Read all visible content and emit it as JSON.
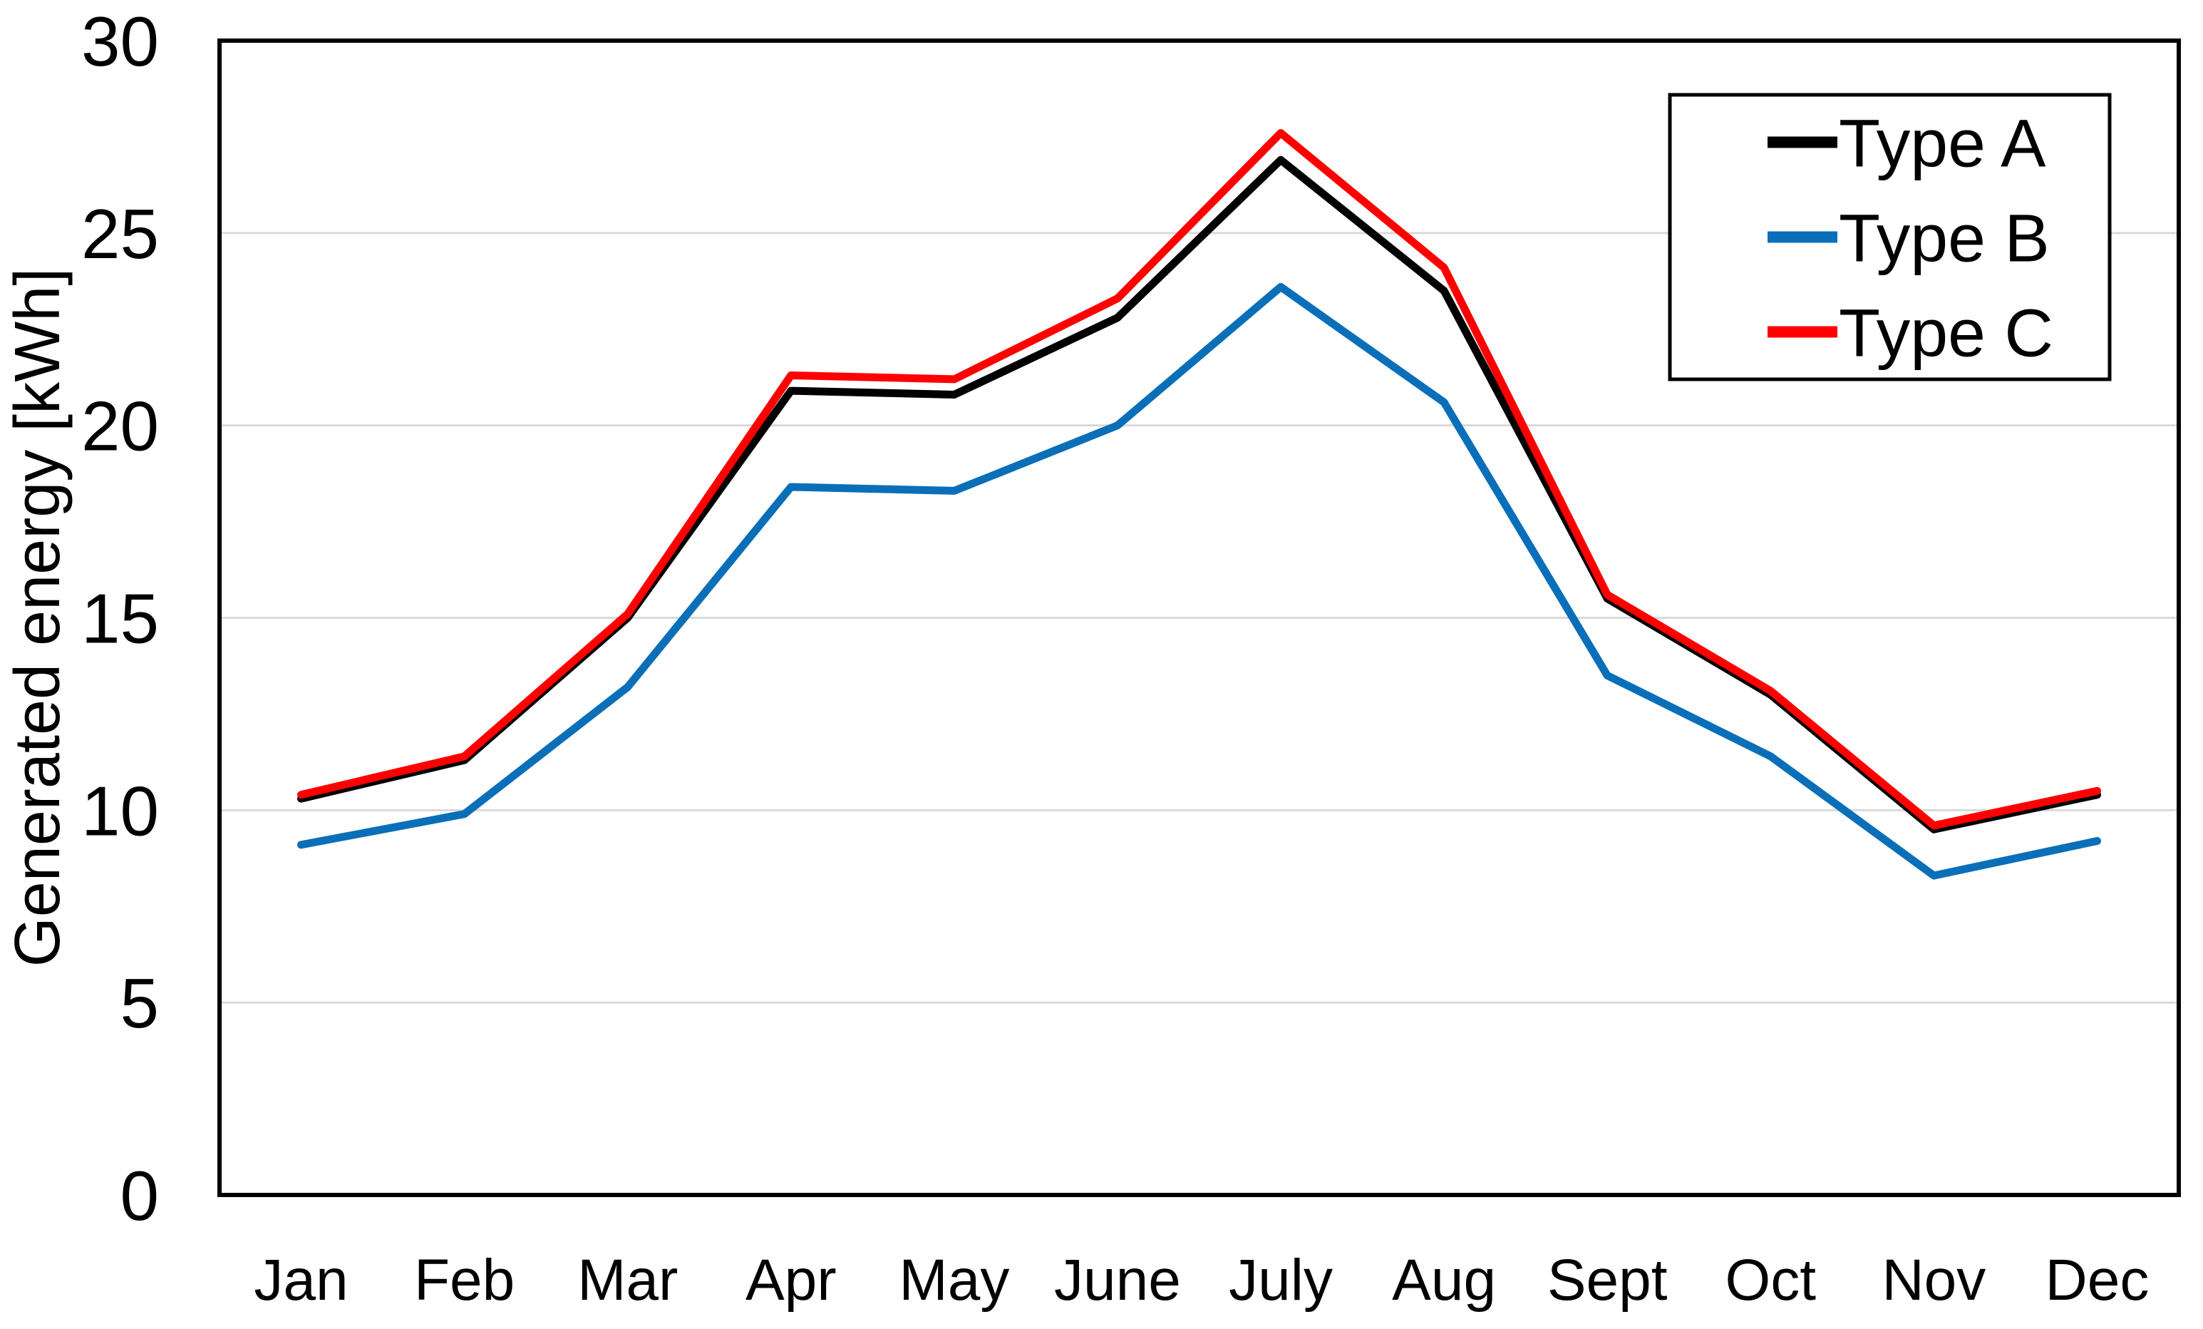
{
  "chart_data": {
    "type": "line",
    "title": "",
    "xlabel": "",
    "ylabel": "Generated energy [kWh]",
    "categories": [
      "Jan",
      "Feb",
      "Mar",
      "Apr",
      "May",
      "June",
      "July",
      "Aug",
      "Sept",
      "Oct",
      "Nov",
      "Dec"
    ],
    "series": [
      {
        "name": "Type A",
        "color": "#000000",
        "values": [
          10.3,
          11.3,
          15.0,
          20.9,
          20.8,
          22.8,
          26.9,
          23.5,
          15.5,
          13.0,
          9.5,
          10.4
        ]
      },
      {
        "name": "Type B",
        "color": "#0a6fb8",
        "values": [
          9.1,
          9.9,
          13.2,
          18.4,
          18.3,
          20.0,
          23.6,
          20.6,
          13.5,
          11.4,
          8.3,
          9.2
        ]
      },
      {
        "name": "Type C",
        "color": "#ff0000",
        "values": [
          10.4,
          11.4,
          15.1,
          21.3,
          21.2,
          23.3,
          27.6,
          24.1,
          15.6,
          13.1,
          9.6,
          10.5
        ]
      }
    ],
    "ylim": [
      0,
      30
    ],
    "yticks": [
      0,
      5,
      10,
      15,
      20,
      25,
      30
    ],
    "grid": true,
    "legend_position": "top-right",
    "legend_labels": [
      "Type A",
      "Type B",
      "Type C"
    ],
    "colors": {
      "background": "#ffffff",
      "gridline": "#d9d9d9",
      "axis_border": "#000000",
      "text": "#000000",
      "legend_border": "#000000",
      "legend_fill": "#ffffff"
    }
  }
}
